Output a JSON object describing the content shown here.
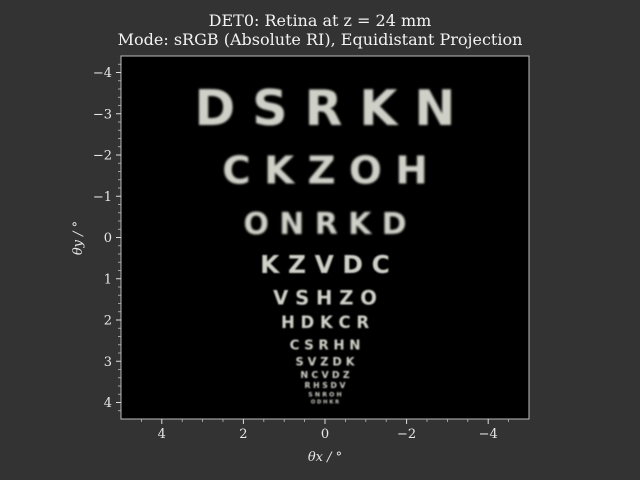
{
  "title_line1": "DET0: Retina at z = 24 mm",
  "title_line2": "Mode: sRGB (Absolute RI), Equidistant Projection",
  "axes": {
    "xlabel": "θx / °",
    "ylabel": "θy / °",
    "xlim": [
      5,
      -5
    ],
    "ylim": [
      -4.4,
      4.4
    ],
    "xticks": [
      4,
      2,
      0,
      -2,
      -4
    ],
    "xtick_labels": [
      "4",
      "2",
      "0",
      "−2",
      "−4"
    ],
    "yticks": [
      -4,
      -3,
      -2,
      -1,
      0,
      1,
      2,
      3,
      4
    ],
    "ytick_labels": [
      "−4",
      "−3",
      "−2",
      "−1",
      "0",
      "1",
      "2",
      "3",
      "4"
    ]
  },
  "colors": {
    "figure_bg": "#333333",
    "plot_bg": "#000000",
    "letters": "#cfd0c8",
    "frame": "#bbbbbb"
  },
  "eye_chart": {
    "rows": [
      {
        "text": "D S R K N",
        "y": -3.15,
        "size": 0.95
      },
      {
        "text": "C K Z O H",
        "y": -1.65,
        "size": 0.75
      },
      {
        "text": "O N R K D",
        "y": -0.35,
        "size": 0.58
      },
      {
        "text": "K Z V D C",
        "y": 0.65,
        "size": 0.48
      },
      {
        "text": "V S H Z O",
        "y": 1.45,
        "size": 0.38
      },
      {
        "text": "H D K C R",
        "y": 2.05,
        "size": 0.32
      },
      {
        "text": "C S R H N",
        "y": 2.6,
        "size": 0.26
      },
      {
        "text": "S V Z D K",
        "y": 3.0,
        "size": 0.22
      },
      {
        "text": "N C V D Z",
        "y": 3.32,
        "size": 0.18
      },
      {
        "text": "R H S D V",
        "y": 3.58,
        "size": 0.15
      },
      {
        "text": "S N R O H",
        "y": 3.8,
        "size": 0.12
      },
      {
        "text": "O D H K R",
        "y": 3.98,
        "size": 0.1
      }
    ]
  }
}
